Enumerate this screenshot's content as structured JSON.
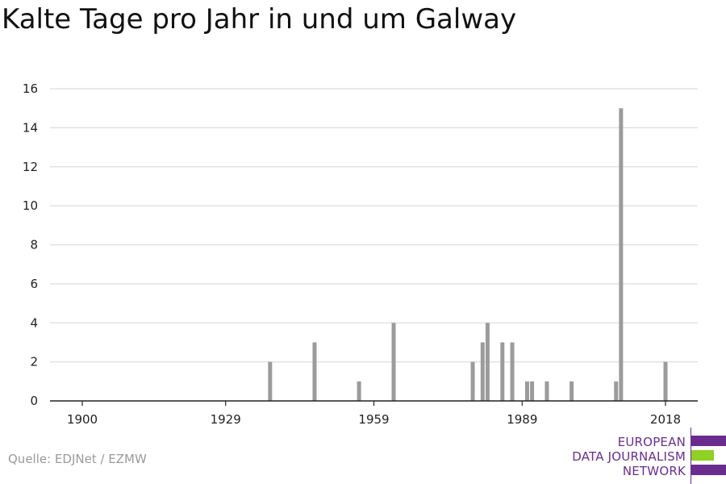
{
  "title": "Kalte Tage pro Jahr in und um Galway",
  "source": "Quelle: EDJNet / EZMW",
  "logo": {
    "line1": "EUROPEAN",
    "line2": "DATA JOURNALISM",
    "line3": "NETWORK",
    "colors": [
      "#6a2d8f",
      "#8fd124",
      "#6a2d8f"
    ]
  },
  "colors": {
    "bar": "#9b9b9b",
    "grid": "#dddddd",
    "axis": "#222222"
  },
  "chart_data": {
    "type": "bar",
    "title": "Kalte Tage pro Jahr in und um Galway",
    "xlabel": "",
    "ylabel": "",
    "xlim": [
      1900,
      2018
    ],
    "ylim": [
      0,
      16
    ],
    "x_ticks": [
      1900,
      1929,
      1959,
      1989,
      2018
    ],
    "y_ticks": [
      0,
      2,
      4,
      6,
      8,
      10,
      12,
      14,
      16
    ],
    "grid": true,
    "x": [
      1938,
      1947,
      1956,
      1963,
      1979,
      1981,
      1982,
      1985,
      1987,
      1990,
      1991,
      1994,
      1999,
      2008,
      2009,
      2018
    ],
    "values": [
      2,
      3,
      1,
      4,
      2,
      3,
      4,
      3,
      3,
      1,
      1,
      1,
      1,
      1,
      15,
      2
    ]
  }
}
